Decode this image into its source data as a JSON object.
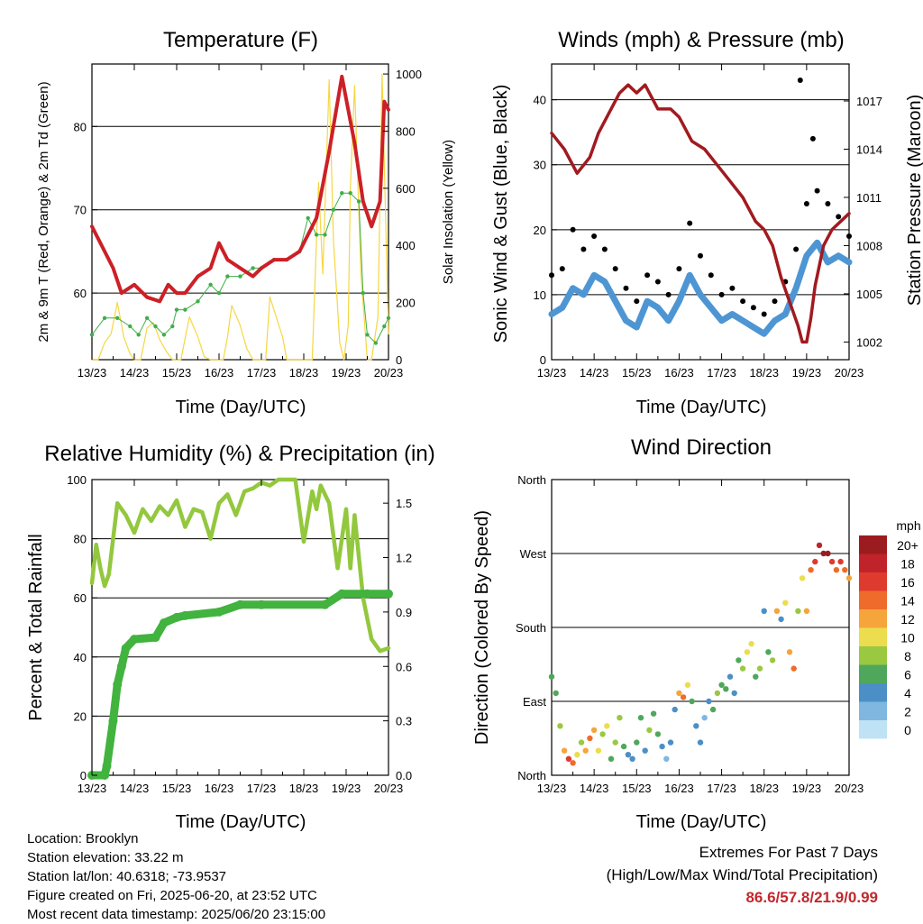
{
  "info": {
    "location": "Location: Brooklyn",
    "elevation": "Station elevation: 33.22 m",
    "latlon": "Station lat/lon: 40.6318; -73.9537",
    "created": "Figure created on Fri, 2025-06-20, at 23:52 UTC",
    "timestamp": "Most recent data timestamp: 2025/06/20 23:15:00"
  },
  "extremes": {
    "line1": "Extremes For Past 7 Days",
    "line2": "(High/Low/Max Wind/Total Precipitation)",
    "values": "86.6/57.8/21.9/0.99"
  },
  "colors": {
    "temp": "#cc2027",
    "dewpoint": "#3fae49",
    "solar": "#f5d742",
    "wind": "#4e96d3",
    "gust": "#000000",
    "pressure": "#a11a1f",
    "humidity": "#93c83e",
    "precip": "#41b33e"
  },
  "chart_data": [
    {
      "type": "line",
      "title": "Temperature (F)",
      "xlabel": "Time (Day/UTC)",
      "ylabel": "2m & 9m T (Red, Orange) & 2m Td (Green)",
      "y2label": "Solar Insolation (Yellow)",
      "xticks": [
        "13/23",
        "14/23",
        "15/23",
        "16/23",
        "17/23",
        "18/23",
        "19/23",
        "20/23"
      ],
      "xlim": [
        0,
        7
      ],
      "ylim": [
        52,
        87.5
      ],
      "yticks": [
        60,
        70,
        80
      ],
      "y2lim": [
        0,
        1035
      ],
      "y2ticks": [
        0,
        200,
        400,
        600,
        800,
        1000
      ],
      "grid": "horizontal at left ticks",
      "series": [
        {
          "name": "2m T",
          "axis": "left",
          "x": [
            0,
            0.2,
            0.5,
            0.7,
            1,
            1.3,
            1.6,
            1.8,
            2,
            2.2,
            2.5,
            2.8,
            3,
            3.2,
            3.5,
            3.8,
            4,
            4.3,
            4.6,
            4.9,
            5.1,
            5.3,
            5.6,
            5.9,
            6.2,
            6.4,
            6.6,
            6.8,
            6.9,
            7
          ],
          "y": [
            68,
            66,
            63,
            60,
            61,
            59.5,
            59,
            61,
            60,
            60,
            62,
            63,
            66,
            64,
            63,
            62,
            63,
            64,
            64,
            65,
            67,
            69,
            77,
            86,
            78,
            71,
            68,
            71,
            83,
            82
          ]
        },
        {
          "name": "2m Td",
          "axis": "left",
          "x": [
            0,
            0.3,
            0.6,
            0.9,
            1.1,
            1.3,
            1.5,
            1.7,
            1.9,
            2,
            2.2,
            2.5,
            2.8,
            3,
            3.2,
            3.5,
            3.8,
            4,
            4.3,
            4.6,
            4.9,
            5.1,
            5.3,
            5.5,
            5.7,
            5.9,
            6.1,
            6.3,
            6.4,
            6.5,
            6.7,
            6.9,
            7
          ],
          "y": [
            55,
            57,
            57,
            56,
            55,
            57,
            56,
            55,
            56,
            58,
            58,
            59,
            61,
            60,
            62,
            62,
            63,
            63,
            64,
            64,
            65,
            69,
            67,
            67,
            70,
            72,
            72,
            71,
            60,
            55,
            54,
            56,
            57
          ]
        },
        {
          "name": "Solar Insolation",
          "axis": "right",
          "x": [
            0,
            0.1,
            0.15,
            0.3,
            0.45,
            0.6,
            0.75,
            0.9,
            1,
            1.15,
            1.3,
            1.45,
            1.6,
            1.75,
            1.9,
            2.1,
            2.3,
            2.5,
            2.65,
            2.8,
            3,
            3.1,
            3.2,
            3.3,
            3.5,
            3.65,
            3.8,
            3.9,
            4,
            4.1,
            4.2,
            4.35,
            4.5,
            4.6,
            4.7,
            4.8,
            4.9,
            5,
            5.1,
            5.2,
            5.35,
            5.45,
            5.6,
            5.7,
            5.85,
            5.95,
            6.05,
            6.1,
            6.2,
            6.35,
            6.5,
            6.6,
            6.75,
            6.85,
            6.95,
            7
          ],
          "y": [
            0,
            0,
            0,
            60,
            90,
            200,
            80,
            20,
            0,
            0,
            110,
            130,
            70,
            30,
            0,
            0,
            150,
            80,
            10,
            0,
            0,
            0,
            80,
            190,
            120,
            40,
            0,
            0,
            0,
            0,
            220,
            150,
            80,
            0,
            0,
            0,
            0,
            0,
            0,
            0,
            620,
            300,
            980,
            420,
            60,
            0,
            120,
            600,
            960,
            300,
            0,
            0,
            150,
            1000,
            380,
            90
          ]
        }
      ]
    },
    {
      "type": "scatter",
      "title": "Winds (mph) & Pressure (mb)",
      "xlabel": "Time (Day/UTC)",
      "ylabel": "Sonic Wind & Gust (Blue, Black)",
      "y2label": "Station Pressure (Maroon)",
      "xticks": [
        "13/23",
        "14/23",
        "15/23",
        "16/23",
        "17/23",
        "18/23",
        "19/23",
        "20/23"
      ],
      "xlim": [
        0,
        7
      ],
      "ylim": [
        0,
        45.5
      ],
      "yticks": [
        0,
        10,
        20,
        30,
        40
      ],
      "y2lim": [
        1000.9,
        1019.3
      ],
      "y2ticks": [
        1002,
        1005,
        1008,
        1011,
        1014,
        1017
      ],
      "grid": "horizontal at left ticks",
      "series": [
        {
          "name": "Sonic Wind",
          "axis": "left",
          "x": [
            0,
            0.25,
            0.5,
            0.75,
            1,
            1.25,
            1.5,
            1.75,
            2,
            2.25,
            2.5,
            2.75,
            3,
            3.25,
            3.5,
            3.75,
            4,
            4.25,
            4.5,
            4.75,
            5,
            5.25,
            5.5,
            5.75,
            6,
            6.25,
            6.5,
            6.75,
            7
          ],
          "y": [
            7,
            8,
            11,
            10,
            13,
            12,
            9,
            6,
            5,
            9,
            8,
            6,
            9,
            13,
            10,
            8,
            6,
            7,
            6,
            5,
            4,
            6,
            7,
            11,
            16,
            18,
            15,
            16,
            15
          ]
        },
        {
          "name": "Gust",
          "axis": "left",
          "x": [
            0,
            0.25,
            0.5,
            0.75,
            1,
            1.25,
            1.5,
            1.75,
            2,
            2.25,
            2.5,
            2.75,
            3,
            3.25,
            3.5,
            3.75,
            4,
            4.25,
            4.5,
            4.75,
            5,
            5.25,
            5.5,
            5.75,
            5.85,
            6,
            6.15,
            6.25,
            6.5,
            6.75,
            7
          ],
          "y": [
            13,
            14,
            20,
            17,
            19,
            17,
            14,
            11,
            9,
            13,
            12,
            10,
            14,
            21,
            16,
            13,
            10,
            11,
            9,
            8,
            7,
            9,
            12,
            17,
            43,
            24,
            34,
            26,
            24,
            22,
            19
          ]
        },
        {
          "name": "Station Pressure",
          "axis": "right",
          "x": [
            0,
            0.3,
            0.6,
            0.9,
            1.1,
            1.3,
            1.6,
            1.8,
            2,
            2.2,
            2.5,
            2.8,
            3,
            3.3,
            3.6,
            3.9,
            4.2,
            4.5,
            4.8,
            5,
            5.2,
            5.4,
            5.6,
            5.8,
            5.9,
            6,
            6.1,
            6.2,
            6.4,
            6.6,
            6.8,
            7
          ],
          "y": [
            1015,
            1014,
            1012.5,
            1013.5,
            1015,
            1016,
            1017.5,
            1018,
            1017.5,
            1018,
            1016.5,
            1016.5,
            1016,
            1014.5,
            1014,
            1013,
            1012,
            1011,
            1009.5,
            1009,
            1008,
            1006,
            1004.5,
            1003,
            1002,
            1002,
            1003.5,
            1005.5,
            1008,
            1009,
            1009.5,
            1010
          ]
        }
      ]
    },
    {
      "type": "line",
      "title": "Relative Humidity (%) & Precipitation (in)",
      "xlabel": "Time (Day/UTC)",
      "ylabel": "Percent & Total Rainfall",
      "xticks": [
        "13/23",
        "14/23",
        "15/23",
        "16/23",
        "17/23",
        "18/23",
        "19/23",
        "20/23"
      ],
      "xlim": [
        0,
        7
      ],
      "ylim": [
        0,
        100
      ],
      "yticks": [
        0,
        20,
        40,
        60,
        80,
        100
      ],
      "y2lim": [
        0,
        1.63
      ],
      "y2ticks": [
        "0.0",
        "0.3",
        "0.6",
        "0.9",
        "1.2",
        "1.5"
      ],
      "grid": "horizontal at left ticks",
      "series": [
        {
          "name": "Relative Humidity",
          "axis": "left",
          "x": [
            0,
            0.1,
            0.2,
            0.3,
            0.4,
            0.5,
            0.6,
            0.8,
            1,
            1.2,
            1.4,
            1.6,
            1.8,
            2,
            2.2,
            2.4,
            2.6,
            2.8,
            3,
            3.2,
            3.4,
            3.6,
            3.8,
            4,
            4.2,
            4.4,
            4.6,
            4.8,
            5,
            5.2,
            5.3,
            5.4,
            5.6,
            5.8,
            6,
            6.1,
            6.2,
            6.4,
            6.6,
            6.8,
            7
          ],
          "y": [
            65,
            78,
            70,
            64,
            68,
            80,
            92,
            88,
            82,
            90,
            86,
            91,
            88,
            93,
            84,
            90,
            89,
            80,
            92,
            95,
            88,
            96,
            97,
            99,
            98,
            100,
            100,
            100,
            79,
            96,
            90,
            98,
            92,
            70,
            90,
            70,
            88,
            60,
            46,
            42,
            43
          ]
        },
        {
          "name": "Total Rainfall",
          "axis": "right",
          "x": [
            0,
            0.3,
            0.35,
            0.5,
            0.6,
            0.7,
            0.8,
            1,
            1.5,
            1.7,
            2,
            2.2,
            3,
            3.5,
            4,
            5.5,
            5.9,
            6.5,
            7
          ],
          "y": [
            0,
            0,
            0.05,
            0.3,
            0.5,
            0.6,
            0.7,
            0.75,
            0.76,
            0.84,
            0.87,
            0.88,
            0.9,
            0.94,
            0.94,
            0.94,
            1.0,
            1.0,
            1.0
          ]
        }
      ]
    },
    {
      "type": "scatter",
      "title": "Wind Direction",
      "xlabel": "Time (Day/UTC)",
      "ylabel": "Direction (Colored By Speed)",
      "xticks": [
        "13/23",
        "14/23",
        "15/23",
        "16/23",
        "17/23",
        "18/23",
        "19/23",
        "20/23"
      ],
      "xlim": [
        0,
        7
      ],
      "ylim": [
        0,
        360
      ],
      "yticks": [
        "North",
        "East",
        "South",
        "West",
        "North"
      ],
      "grid": "horizontal at left ticks",
      "legend": {
        "title": "mph",
        "placement": "right",
        "labels": [
          "20+",
          "18",
          "16",
          "14",
          "12",
          "10",
          "8",
          "6",
          "4",
          "2",
          "0"
        ],
        "colors": [
          "#9b1b1e",
          "#c0232a",
          "#df3a2e",
          "#ef6b2c",
          "#f6a53b",
          "#ecdd4f",
          "#9bc841",
          "#4fa75b",
          "#4b8fc6",
          "#7fb7e1",
          "#bfe3f5"
        ]
      },
      "points_x": [
        0,
        0.1,
        0.2,
        0.3,
        0.4,
        0.5,
        0.6,
        0.7,
        0.8,
        0.9,
        1,
        1.1,
        1.2,
        1.3,
        1.4,
        1.5,
        1.6,
        1.7,
        1.8,
        1.9,
        2,
        2.1,
        2.2,
        2.3,
        2.4,
        2.5,
        2.6,
        2.7,
        2.8,
        2.9,
        3,
        3.1,
        3.2,
        3.3,
        3.4,
        3.5,
        3.6,
        3.7,
        3.8,
        3.9,
        4,
        4.1,
        4.2,
        4.3,
        4.4,
        4.5,
        4.6,
        4.7,
        4.8,
        4.9,
        5,
        5.1,
        5.2,
        5.3,
        5.4,
        5.5,
        5.6,
        5.7,
        5.8,
        5.9,
        6,
        6.1,
        6.2,
        6.3,
        6.4,
        6.5,
        6.6,
        6.7,
        6.8,
        6.9,
        7
      ],
      "points_y": [
        120,
        100,
        60,
        30,
        20,
        15,
        25,
        40,
        30,
        45,
        55,
        30,
        50,
        60,
        20,
        40,
        70,
        35,
        25,
        20,
        40,
        70,
        30,
        55,
        75,
        50,
        35,
        20,
        40,
        80,
        100,
        95,
        110,
        90,
        60,
        40,
        70,
        90,
        80,
        100,
        110,
        105,
        120,
        100,
        140,
        130,
        150,
        160,
        120,
        130,
        200,
        150,
        140,
        200,
        190,
        210,
        150,
        130,
        200,
        240,
        200,
        250,
        260,
        280,
        270,
        270,
        260,
        250,
        260,
        250,
        240
      ],
      "points_speed": [
        6,
        5,
        8,
        12,
        16,
        14,
        10,
        8,
        12,
        14,
        12,
        10,
        8,
        9,
        6,
        7,
        8,
        5,
        4,
        3,
        6,
        5,
        4,
        8,
        6,
        5,
        3,
        2,
        4,
        3,
        12,
        14,
        10,
        6,
        4,
        3,
        2,
        4,
        6,
        8,
        6,
        5,
        4,
        3,
        6,
        8,
        10,
        9,
        6,
        8,
        4,
        6,
        7,
        12,
        4,
        10,
        12,
        14,
        8,
        9,
        12,
        14,
        16,
        18,
        20,
        19,
        16,
        14,
        15,
        13,
        12
      ]
    }
  ]
}
